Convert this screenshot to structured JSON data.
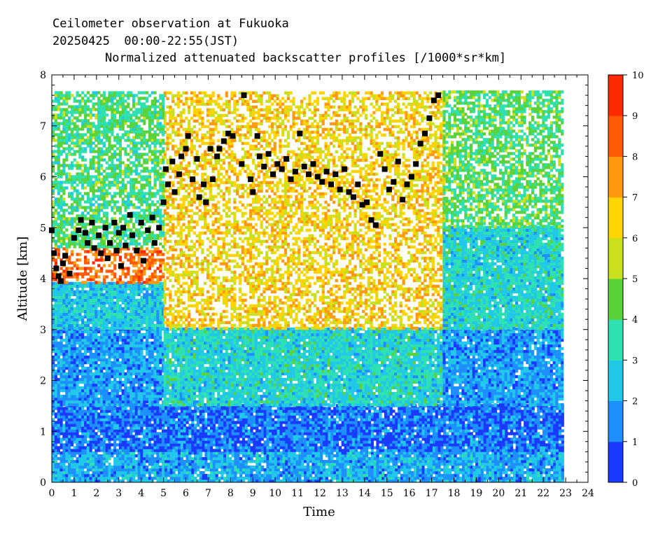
{
  "chart_data": {
    "type": "heatmap",
    "title_lines": [
      "Ceilometer observation at Fukuoka",
      "20250425  00:00-22:55(JST)",
      "Normalized attenuated backscatter profiles [/1000*sr*km]"
    ],
    "xlabel": "Time",
    "ylabel": "Altitude [km]",
    "xlim": [
      0,
      24
    ],
    "ylim": [
      0,
      8
    ],
    "x_ticks": [
      "0",
      "1",
      "2",
      "3",
      "4",
      "5",
      "6",
      "7",
      "8",
      "9",
      "10",
      "11",
      "12",
      "13",
      "14",
      "15",
      "16",
      "17",
      "18",
      "19",
      "20",
      "21",
      "22",
      "23",
      "24"
    ],
    "y_ticks": [
      "0",
      "1",
      "2",
      "3",
      "4",
      "5",
      "6",
      "7",
      "8"
    ],
    "data_x_range": [
      0,
      22.9
    ],
    "data_y_range": [
      0,
      7.65
    ],
    "colorbar": {
      "range": [
        0,
        10
      ],
      "ticks": [
        "0",
        "1",
        "2",
        "3",
        "4",
        "5",
        "6",
        "7",
        "8",
        "9",
        "10"
      ],
      "colors": [
        "#1a3aff",
        "#1e8fff",
        "#22c8e8",
        "#2fe0b0",
        "#5ad23a",
        "#c8e01e",
        "#ffd400",
        "#ff9a10",
        "#ff5a08",
        "#ff2a00"
      ]
    },
    "regions": [
      {
        "t0": 0,
        "t1": 24,
        "z0": 0,
        "z1": 0.6,
        "level": 2.0
      },
      {
        "t0": 0,
        "t1": 24,
        "z0": 0.6,
        "z1": 1.5,
        "level": 1.2
      },
      {
        "t0": 0,
        "t1": 5,
        "z0": 1.5,
        "z1": 3.0,
        "level": 1.8
      },
      {
        "t0": 5,
        "t1": 17.5,
        "z0": 1.5,
        "z1": 3.0,
        "level": 3.0
      },
      {
        "t0": 17.5,
        "t1": 24,
        "z0": 1.5,
        "z1": 3.0,
        "level": 1.8
      },
      {
        "t0": 0,
        "t1": 5,
        "z0": 3.0,
        "z1": 3.9,
        "level": 2.6
      },
      {
        "t0": 5,
        "t1": 17.5,
        "z0": 3.0,
        "z1": 8.0,
        "level": 6.5
      },
      {
        "t0": 17.5,
        "t1": 24,
        "z0": 3.0,
        "z1": 5.0,
        "level": 3.0
      },
      {
        "t0": 17.5,
        "t1": 24,
        "z0": 5.0,
        "z1": 8.0,
        "level": 4.2
      },
      {
        "t0": 0,
        "t1": 5,
        "z0": 3.9,
        "z1": 4.6,
        "level": 8.2
      },
      {
        "t0": 0,
        "t1": 5,
        "z0": 4.6,
        "z1": 8.0,
        "level": 4.0
      }
    ],
    "cloud_base_points": [
      [
        0.0,
        4.95
      ],
      [
        0.1,
        4.5
      ],
      [
        0.2,
        4.2
      ],
      [
        0.3,
        4.05
      ],
      [
        0.4,
        3.95
      ],
      [
        0.5,
        4.3
      ],
      [
        0.6,
        4.45
      ],
      [
        0.8,
        4.1
      ],
      [
        1.0,
        4.8
      ],
      [
        1.2,
        4.95
      ],
      [
        1.3,
        5.15
      ],
      [
        1.5,
        4.9
      ],
      [
        1.6,
        4.7
      ],
      [
        1.8,
        5.1
      ],
      [
        1.9,
        4.6
      ],
      [
        2.1,
        4.85
      ],
      [
        2.2,
        4.5
      ],
      [
        2.4,
        5.0
      ],
      [
        2.5,
        4.4
      ],
      [
        2.6,
        4.7
      ],
      [
        2.8,
        5.1
      ],
      [
        2.9,
        4.55
      ],
      [
        3.0,
        4.9
      ],
      [
        3.1,
        4.25
      ],
      [
        3.2,
        5.0
      ],
      [
        3.3,
        4.65
      ],
      [
        3.5,
        5.25
      ],
      [
        3.6,
        4.85
      ],
      [
        3.8,
        4.55
      ],
      [
        4.0,
        5.1
      ],
      [
        4.1,
        4.35
      ],
      [
        4.3,
        4.95
      ],
      [
        4.5,
        5.2
      ],
      [
        4.6,
        4.7
      ],
      [
        4.8,
        5.0
      ],
      [
        5.0,
        5.5
      ],
      [
        5.1,
        6.15
      ],
      [
        5.2,
        5.85
      ],
      [
        5.4,
        6.3
      ],
      [
        5.5,
        5.7
      ],
      [
        5.7,
        6.05
      ],
      [
        5.8,
        6.4
      ],
      [
        6.0,
        6.55
      ],
      [
        6.1,
        6.8
      ],
      [
        6.3,
        5.95
      ],
      [
        6.5,
        6.35
      ],
      [
        6.6,
        5.6
      ],
      [
        6.8,
        5.85
      ],
      [
        6.9,
        5.5
      ],
      [
        7.1,
        6.55
      ],
      [
        7.2,
        5.95
      ],
      [
        7.4,
        6.4
      ],
      [
        7.5,
        6.55
      ],
      [
        7.7,
        6.7
      ],
      [
        7.9,
        6.85
      ],
      [
        8.1,
        6.8
      ],
      [
        8.5,
        6.25
      ],
      [
        8.6,
        7.6
      ],
      [
        8.9,
        5.95
      ],
      [
        9.0,
        5.7
      ],
      [
        9.2,
        6.8
      ],
      [
        9.3,
        6.4
      ],
      [
        9.5,
        6.2
      ],
      [
        9.7,
        6.45
      ],
      [
        9.9,
        6.05
      ],
      [
        10.1,
        6.25
      ],
      [
        10.3,
        6.15
      ],
      [
        10.5,
        6.35
      ],
      [
        10.7,
        5.95
      ],
      [
        10.9,
        6.1
      ],
      [
        11.1,
        6.85
      ],
      [
        11.3,
        6.2
      ],
      [
        11.5,
        6.05
      ],
      [
        11.7,
        6.25
      ],
      [
        11.9,
        6.0
      ],
      [
        12.1,
        5.9
      ],
      [
        12.3,
        6.1
      ],
      [
        12.5,
        5.85
      ],
      [
        12.7,
        6.05
      ],
      [
        12.9,
        5.75
      ],
      [
        13.1,
        6.15
      ],
      [
        13.3,
        5.7
      ],
      [
        13.5,
        5.6
      ],
      [
        13.7,
        5.85
      ],
      [
        13.9,
        5.45
      ],
      [
        14.1,
        5.5
      ],
      [
        14.3,
        5.15
      ],
      [
        14.5,
        5.05
      ],
      [
        14.7,
        6.45
      ],
      [
        14.9,
        6.15
      ],
      [
        15.1,
        5.75
      ],
      [
        15.3,
        5.9
      ],
      [
        15.5,
        6.3
      ],
      [
        15.7,
        5.55
      ],
      [
        15.9,
        5.85
      ],
      [
        16.1,
        6.0
      ],
      [
        16.3,
        6.25
      ],
      [
        16.5,
        6.65
      ],
      [
        16.7,
        6.85
      ],
      [
        16.9,
        7.15
      ],
      [
        17.1,
        7.5
      ],
      [
        17.3,
        7.6
      ]
    ]
  }
}
